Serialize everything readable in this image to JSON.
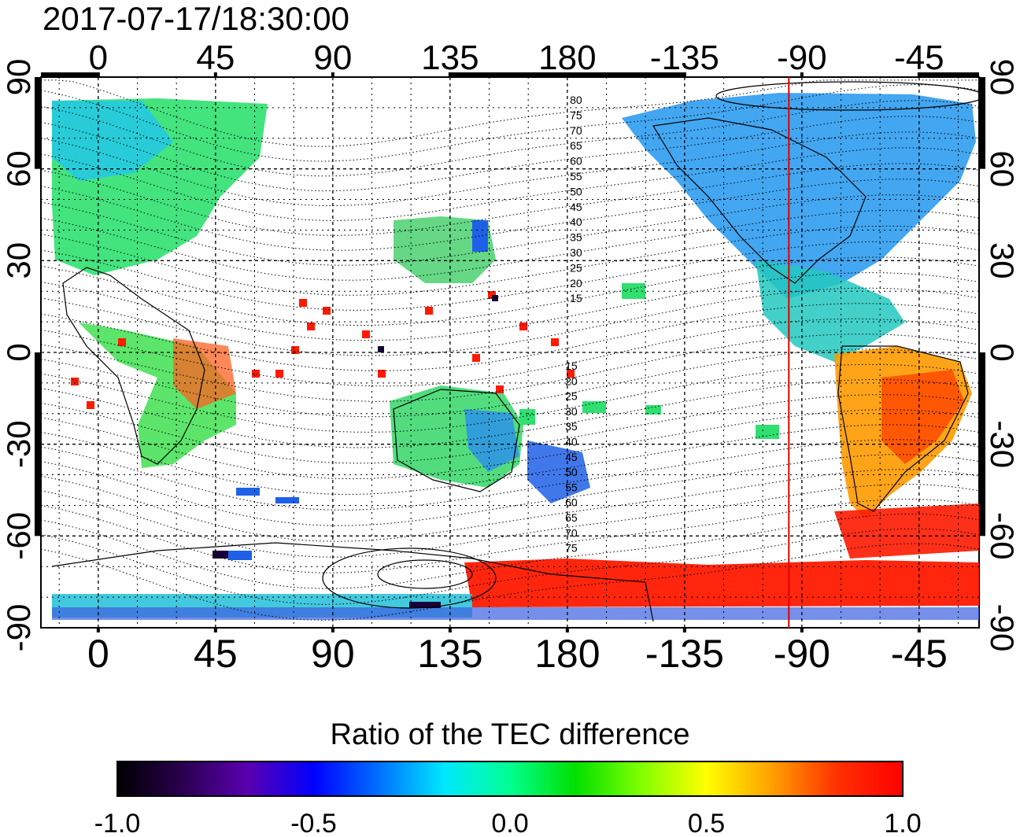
{
  "timestamp": "2017-07-17/18:30:00",
  "map": {
    "lon_start": -22,
    "lon_end": 338,
    "lat_min": -90,
    "lat_max": 90,
    "top_lon_ticks": [
      "0",
      "45",
      "90",
      "135",
      "180",
      "-135",
      "-90",
      "-45"
    ],
    "bottom_lon_ticks": [
      "0",
      "45",
      "90",
      "135",
      "180",
      "-135",
      "-90",
      "-45"
    ],
    "left_lat_ticks": [
      "90",
      "60",
      "30",
      "0",
      "-30",
      "-60",
      "-90"
    ],
    "right_lat_ticks": [
      "90",
      "60",
      "30",
      "0",
      "-30",
      "-60",
      "-90"
    ],
    "marker_lon": -95,
    "marker_color": "#e00000",
    "north_contour_labels": [
      "80",
      "75",
      "70",
      "65",
      "60",
      "55",
      "50",
      "45",
      "40",
      "35",
      "30",
      "25",
      "20",
      "15"
    ],
    "south_contour_labels": [
      "15",
      "20",
      "25",
      "30",
      "35",
      "40",
      "45",
      "50",
      "55",
      "60",
      "65",
      "70",
      "75"
    ]
  },
  "colorbar": {
    "title": "Ratio of the TEC difference",
    "min": -1.0,
    "max": 1.0,
    "tick_labels": [
      "-1.0",
      "-0.5",
      "0.0",
      "0.5",
      "1.0"
    ],
    "colors": [
      "#000000",
      "#2a0050",
      "#5a00b0",
      "#0000ff",
      "#0070ff",
      "#00e8ff",
      "#00ff90",
      "#00e000",
      "#80ff00",
      "#ffff00",
      "#ffa000",
      "#ff3000",
      "#ff0000"
    ]
  }
}
